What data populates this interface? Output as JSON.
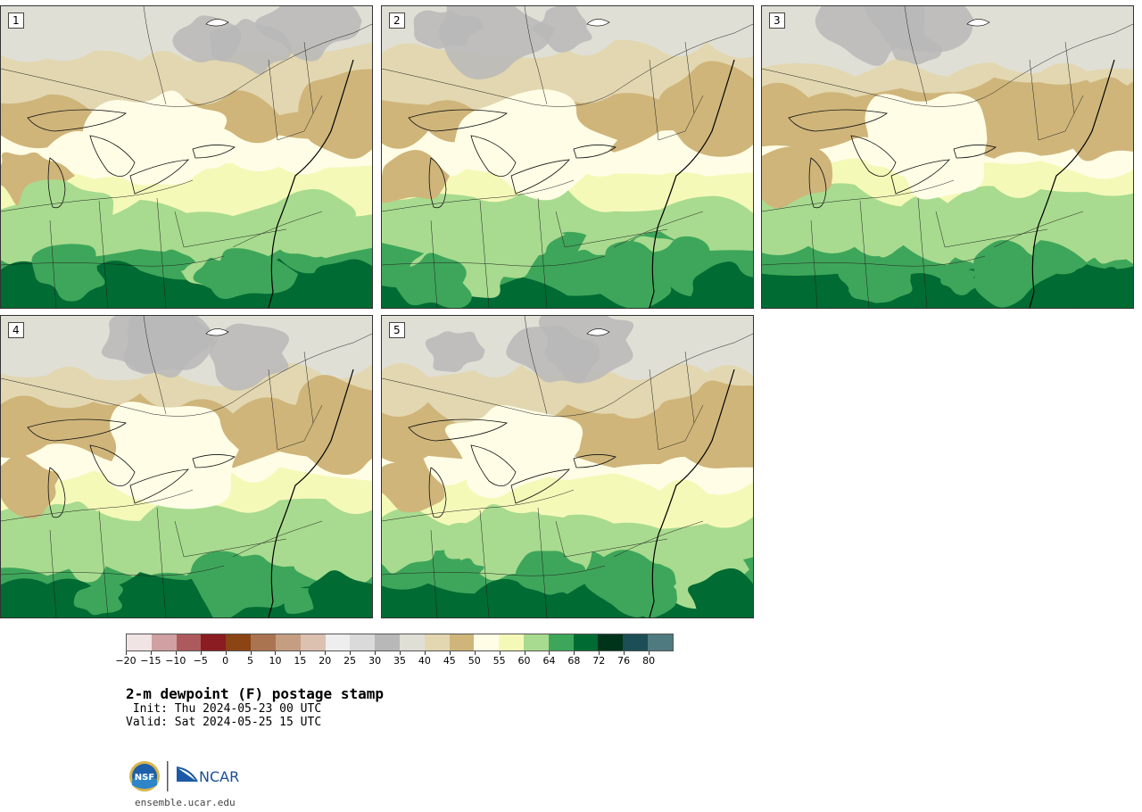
{
  "panels": [
    {
      "label": "1",
      "seed": 3
    },
    {
      "label": "2",
      "seed": 11
    },
    {
      "label": "3",
      "seed": 23
    },
    {
      "label": "4",
      "seed": 37
    },
    {
      "label": "5",
      "seed": 51
    }
  ],
  "legend": {
    "colors": [
      "#f1e4e4",
      "#d0a0a2",
      "#ad5a5f",
      "#8a1c22",
      "#8b4414",
      "#ab7450",
      "#c59e82",
      "#dcc0b0",
      "#eeeeee",
      "#dadada",
      "#b8b8b8",
      "#e0dfd5",
      "#e2d7b0",
      "#cfb57a",
      "#fffde6",
      "#f5f9b8",
      "#a8db8f",
      "#3ea65a",
      "#006b32",
      "#00341a",
      "#1b4e56",
      "#4f7a80"
    ],
    "ticks": [
      "−20",
      "−15",
      "−10",
      "−5",
      "0",
      "5",
      "10",
      "15",
      "20",
      "25",
      "30",
      "35",
      "40",
      "45",
      "50",
      "55",
      "60",
      "64",
      "68",
      "72",
      "76",
      "80"
    ]
  },
  "title": "2-m dewpoint (F) postage stamp",
  "init": " Init: Thu 2024-05-23 00 UTC",
  "valid": "Valid: Sat 2024-05-25 15 UTC",
  "logos": {
    "nsf": "NSF",
    "ncar": "NCAR"
  },
  "url": "ensemble.ucar.edu"
}
